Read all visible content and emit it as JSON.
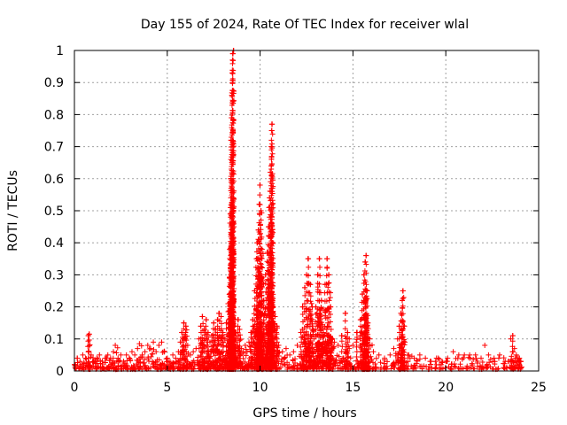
{
  "chart_data": {
    "type": "scatter",
    "title": "Day 155 of 2024, Rate Of TEC Index for receiver wlal",
    "xlabel": "GPS time / hours",
    "ylabel": "ROTI / TECUs",
    "xlim": [
      0,
      25
    ],
    "ylim": [
      0,
      1
    ],
    "xticks": [
      0,
      5,
      10,
      15,
      20,
      25
    ],
    "yticks": [
      0,
      0.1,
      0.2,
      0.3,
      0.4,
      0.5,
      0.6,
      0.7,
      0.8,
      0.9,
      1
    ],
    "grid": true,
    "marker": "+",
    "color": "#ff0000",
    "series": [
      {
        "name": "ROTI",
        "points": [
          [
            0.0,
            0.02
          ],
          [
            0.15,
            0.04
          ],
          [
            0.3,
            0.03
          ],
          [
            0.45,
            0.05
          ],
          [
            0.6,
            0.04
          ],
          [
            0.75,
            0.11
          ],
          [
            0.8,
            0.115
          ],
          [
            0.9,
            0.05
          ],
          [
            1.05,
            0.03
          ],
          [
            1.2,
            0.04
          ],
          [
            1.35,
            0.05
          ],
          [
            1.5,
            0.03
          ],
          [
            1.65,
            0.04
          ],
          [
            1.8,
            0.05
          ],
          [
            1.95,
            0.04
          ],
          [
            2.1,
            0.06
          ],
          [
            2.2,
            0.08
          ],
          [
            2.35,
            0.04
          ],
          [
            2.5,
            0.05
          ],
          [
            2.65,
            0.03
          ],
          [
            2.8,
            0.05
          ],
          [
            2.95,
            0.04
          ],
          [
            3.1,
            0.06
          ],
          [
            3.25,
            0.05
          ],
          [
            3.4,
            0.07
          ],
          [
            3.5,
            0.085
          ],
          [
            3.65,
            0.05
          ],
          [
            3.8,
            0.06
          ],
          [
            3.95,
            0.08
          ],
          [
            4.1,
            0.07
          ],
          [
            4.25,
            0.09
          ],
          [
            4.4,
            0.06
          ],
          [
            4.55,
            0.08
          ],
          [
            4.7,
            0.09
          ],
          [
            4.85,
            0.06
          ],
          [
            5.0,
            0.04
          ],
          [
            5.15,
            0.03
          ],
          [
            5.3,
            0.05
          ],
          [
            5.45,
            0.04
          ],
          [
            5.6,
            0.06
          ],
          [
            5.7,
            0.09
          ],
          [
            5.8,
            0.12
          ],
          [
            5.9,
            0.15
          ],
          [
            6.0,
            0.14
          ],
          [
            6.1,
            0.08
          ],
          [
            6.25,
            0.05
          ],
          [
            6.4,
            0.06
          ],
          [
            6.55,
            0.07
          ],
          [
            6.7,
            0.1
          ],
          [
            6.8,
            0.14
          ],
          [
            6.9,
            0.17
          ],
          [
            7.0,
            0.13
          ],
          [
            7.1,
            0.16
          ],
          [
            7.2,
            0.12
          ],
          [
            7.3,
            0.09
          ],
          [
            7.4,
            0.11
          ],
          [
            7.5,
            0.15
          ],
          [
            7.6,
            0.13
          ],
          [
            7.7,
            0.16
          ],
          [
            7.8,
            0.18
          ],
          [
            7.9,
            0.17
          ],
          [
            8.0,
            0.12
          ],
          [
            8.1,
            0.1
          ],
          [
            8.2,
            0.15
          ],
          [
            8.3,
            0.21
          ],
          [
            8.35,
            0.29
          ],
          [
            8.38,
            0.38
          ],
          [
            8.4,
            0.49
          ],
          [
            8.42,
            0.6
          ],
          [
            8.44,
            0.72
          ],
          [
            8.46,
            0.79
          ],
          [
            8.48,
            0.86
          ],
          [
            8.5,
            0.93
          ],
          [
            8.52,
            0.97
          ],
          [
            8.54,
            0.99
          ],
          [
            8.56,
            1.0
          ],
          [
            8.6,
            0.14
          ],
          [
            8.7,
            0.12
          ],
          [
            8.8,
            0.16
          ],
          [
            8.9,
            0.13
          ],
          [
            9.0,
            0.07
          ],
          [
            9.1,
            0.06
          ],
          [
            9.2,
            0.08
          ],
          [
            9.3,
            0.06
          ],
          [
            9.4,
            0.09
          ],
          [
            9.5,
            0.12
          ],
          [
            9.6,
            0.16
          ],
          [
            9.7,
            0.25
          ],
          [
            9.8,
            0.35
          ],
          [
            9.85,
            0.4
          ],
          [
            9.9,
            0.44
          ],
          [
            9.95,
            0.52
          ],
          [
            10.0,
            0.58
          ],
          [
            10.05,
            0.5
          ],
          [
            10.1,
            0.38
          ],
          [
            10.2,
            0.22
          ],
          [
            10.3,
            0.3
          ],
          [
            10.4,
            0.37
          ],
          [
            10.45,
            0.45
          ],
          [
            10.5,
            0.54
          ],
          [
            10.55,
            0.62
          ],
          [
            10.6,
            0.7
          ],
          [
            10.62,
            0.75
          ],
          [
            10.65,
            0.77
          ],
          [
            10.7,
            0.2
          ],
          [
            10.8,
            0.17
          ],
          [
            10.9,
            0.14
          ],
          [
            11.0,
            0.08
          ],
          [
            11.2,
            0.06
          ],
          [
            11.4,
            0.07
          ],
          [
            11.6,
            0.05
          ],
          [
            11.8,
            0.06
          ],
          [
            12.0,
            0.08
          ],
          [
            12.2,
            0.12
          ],
          [
            12.3,
            0.2
          ],
          [
            12.4,
            0.26
          ],
          [
            12.5,
            0.3
          ],
          [
            12.6,
            0.35
          ],
          [
            12.7,
            0.27
          ],
          [
            12.8,
            0.2
          ],
          [
            12.9,
            0.1
          ],
          [
            13.0,
            0.2
          ],
          [
            13.1,
            0.3
          ],
          [
            13.2,
            0.35
          ],
          [
            13.3,
            0.22
          ],
          [
            13.4,
            0.12
          ],
          [
            13.5,
            0.27
          ],
          [
            13.6,
            0.35
          ],
          [
            13.7,
            0.3
          ],
          [
            13.8,
            0.2
          ],
          [
            13.9,
            0.1
          ],
          [
            14.0,
            0.09
          ],
          [
            14.2,
            0.08
          ],
          [
            14.4,
            0.11
          ],
          [
            14.6,
            0.18
          ],
          [
            14.7,
            0.12
          ],
          [
            14.8,
            0.1
          ],
          [
            15.0,
            0.08
          ],
          [
            15.2,
            0.12
          ],
          [
            15.4,
            0.16
          ],
          [
            15.5,
            0.24
          ],
          [
            15.6,
            0.3
          ],
          [
            15.65,
            0.34
          ],
          [
            15.7,
            0.36
          ],
          [
            15.75,
            0.25
          ],
          [
            15.8,
            0.15
          ],
          [
            15.9,
            0.1
          ],
          [
            16.1,
            0.06
          ],
          [
            16.4,
            0.05
          ],
          [
            16.7,
            0.04
          ],
          [
            17.0,
            0.05
          ],
          [
            17.2,
            0.07
          ],
          [
            17.4,
            0.1
          ],
          [
            17.5,
            0.14
          ],
          [
            17.6,
            0.18
          ],
          [
            17.65,
            0.22
          ],
          [
            17.7,
            0.25
          ],
          [
            17.8,
            0.09
          ],
          [
            18.0,
            0.05
          ],
          [
            18.3,
            0.04
          ],
          [
            18.6,
            0.05
          ],
          [
            18.9,
            0.04
          ],
          [
            19.2,
            0.03
          ],
          [
            19.5,
            0.04
          ],
          [
            19.8,
            0.03
          ],
          [
            20.1,
            0.04
          ],
          [
            20.4,
            0.06
          ],
          [
            20.7,
            0.05
          ],
          [
            21.0,
            0.05
          ],
          [
            21.3,
            0.04
          ],
          [
            21.6,
            0.05
          ],
          [
            21.9,
            0.04
          ],
          [
            22.1,
            0.08
          ],
          [
            22.3,
            0.05
          ],
          [
            22.6,
            0.04
          ],
          [
            22.9,
            0.05
          ],
          [
            23.2,
            0.03
          ],
          [
            23.5,
            0.1
          ],
          [
            23.6,
            0.11
          ],
          [
            23.7,
            0.07
          ],
          [
            23.8,
            0.05
          ],
          [
            23.9,
            0.04
          ],
          [
            24.0,
            0.03
          ]
        ]
      }
    ]
  }
}
